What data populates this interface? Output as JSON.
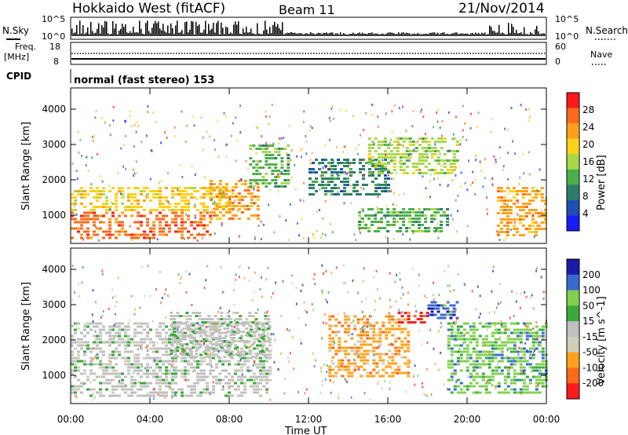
{
  "header": {
    "station": "Hokkaido West (fitACF)",
    "beam": "Beam 11",
    "date": "21/Nov/2014"
  },
  "summary_panels": {
    "nsky_label": "N.Sky",
    "nsearch_label": "N.Search",
    "noise_top_tick": "10^5",
    "noise_bottom_tick": "10^0",
    "freq_label_1": "Freq.",
    "freq_label_2": "[MHz]",
    "freq_ticks": [
      "18",
      "8"
    ],
    "nave_label": "Nave",
    "nave_ticks": [
      "60",
      "0"
    ],
    "cpid_label": "CPID",
    "cpid_text": "normal (fast stereo) 153"
  },
  "colors": {
    "power_scale": [
      "#1a1aff",
      "#1f4fb0",
      "#2e7d6a",
      "#4cae4c",
      "#a8d84a",
      "#ffd21a",
      "#ffa21a",
      "#ff6a1a",
      "#ff1a1a"
    ],
    "velocity_scale": [
      "#ff1a1a",
      "#ff6a1a",
      "#ffa21a",
      "#cfcfb8",
      "#c0c0c0",
      "#3aaa3a",
      "#7fd04f",
      "#3a6ad0",
      "#1a1aaa"
    ]
  },
  "chart_data": [
    {
      "type": "heatmap",
      "title": "",
      "xlabel": "Time UT",
      "ylabel": "Slant Range [km]",
      "x_ticks": [
        "00:00",
        "04:00",
        "08:00",
        "12:00",
        "16:00",
        "20:00",
        "00:00"
      ],
      "y_ticks": [
        "1000",
        "2000",
        "3000",
        "4000"
      ],
      "ylim": [
        200,
        4600
      ],
      "colorbar": {
        "label": "Power [dB]",
        "ticks": [
          "4",
          "8",
          "12",
          "16",
          "20",
          "24",
          "28"
        ],
        "range": [
          0,
          32
        ]
      },
      "regions": [
        {
          "hours": [
            0,
            7
          ],
          "range_km": [
            300,
            1100
          ],
          "level": "28"
        },
        {
          "hours": [
            0,
            8
          ],
          "range_km": [
            1100,
            1800
          ],
          "level": "20"
        },
        {
          "hours": [
            7,
            9.5
          ],
          "range_km": [
            900,
            2000
          ],
          "level": "24"
        },
        {
          "hours": [
            9,
            11
          ],
          "range_km": [
            1800,
            3000
          ],
          "level": "12"
        },
        {
          "hours": [
            12,
            16
          ],
          "range_km": [
            1600,
            2600
          ],
          "level": "8"
        },
        {
          "hours": [
            14.5,
            19
          ],
          "range_km": [
            500,
            1200
          ],
          "level": "12"
        },
        {
          "hours": [
            15,
            19.5
          ],
          "range_km": [
            2200,
            3200
          ],
          "level": "16"
        },
        {
          "hours": [
            21.5,
            24
          ],
          "range_km": [
            400,
            1800
          ],
          "level": "24"
        }
      ]
    },
    {
      "type": "heatmap",
      "title": "",
      "xlabel": "Time UT",
      "ylabel": "Slant Range [km]",
      "x_ticks": [
        "00:00",
        "04:00",
        "08:00",
        "12:00",
        "16:00",
        "20:00",
        "00:00"
      ],
      "y_ticks": [
        "1000",
        "2000",
        "3000",
        "4000"
      ],
      "ylim": [
        200,
        4600
      ],
      "colorbar": {
        "label": "Velocity [m s^-1]",
        "ticks": [
          "-200",
          "-100",
          "-50",
          "-15",
          "15",
          "50",
          "100",
          "200"
        ],
        "range": [
          -250,
          250
        ]
      },
      "regions": [
        {
          "hours": [
            0,
            10
          ],
          "range_km": [
            400,
            2500
          ],
          "level": "-15 to 15"
        },
        {
          "hours": [
            5,
            10
          ],
          "range_km": [
            1500,
            2800
          ],
          "level": "-15 to 15"
        },
        {
          "hours": [
            13,
            17
          ],
          "range_km": [
            1000,
            2700
          ],
          "level": "-50"
        },
        {
          "hours": [
            16.5,
            18
          ],
          "range_km": [
            2500,
            2800
          ],
          "level": "-200"
        },
        {
          "hours": [
            18,
            19.5
          ],
          "range_km": [
            2600,
            3100
          ],
          "level": "100"
        },
        {
          "hours": [
            19,
            24
          ],
          "range_km": [
            500,
            2500
          ],
          "level": "15 to 50"
        }
      ]
    }
  ]
}
